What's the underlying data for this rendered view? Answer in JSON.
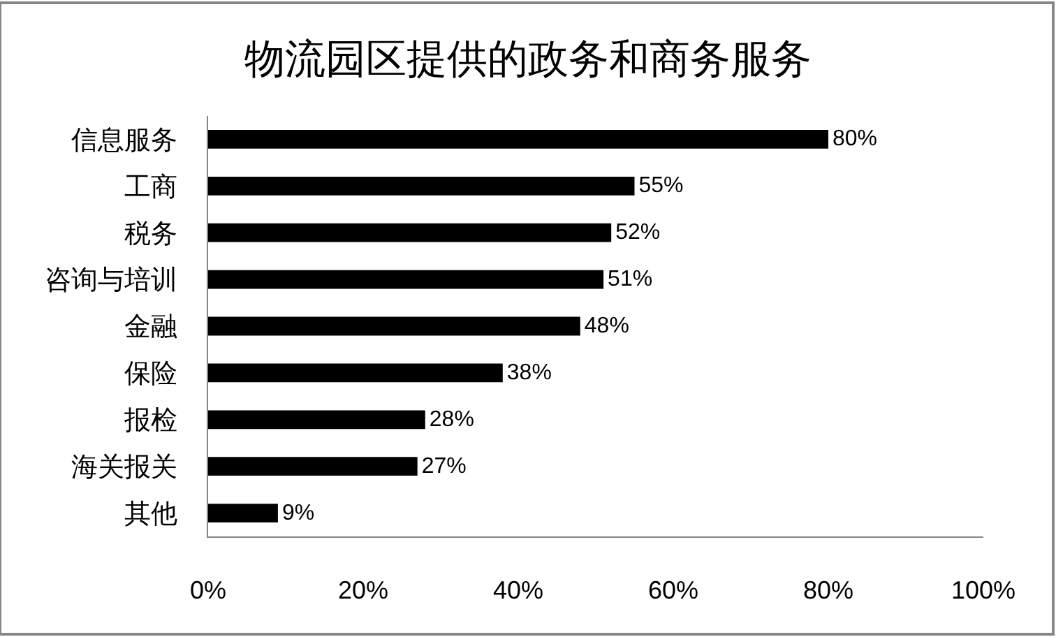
{
  "chart_data": {
    "type": "bar",
    "orientation": "horizontal",
    "title": "物流园区提供的政务和商务服务",
    "categories": [
      "信息服务",
      "工商",
      "税务",
      "咨询与培训",
      "金融",
      "保险",
      "报检",
      "海关报关",
      "其他"
    ],
    "values": [
      80,
      55,
      52,
      51,
      48,
      38,
      28,
      27,
      9
    ],
    "value_labels": [
      "80%",
      "55%",
      "52%",
      "51%",
      "48%",
      "38%",
      "28%",
      "27%",
      "9%"
    ],
    "color": "#000000",
    "xlim": [
      0,
      100
    ],
    "xticks": [
      {
        "value": 0,
        "label": "0%"
      },
      {
        "value": 20,
        "label": "20%"
      },
      {
        "value": 40,
        "label": "40%"
      },
      {
        "value": 60,
        "label": "60%"
      },
      {
        "value": 80,
        "label": "80%"
      },
      {
        "value": 100,
        "label": "100%"
      }
    ]
  }
}
